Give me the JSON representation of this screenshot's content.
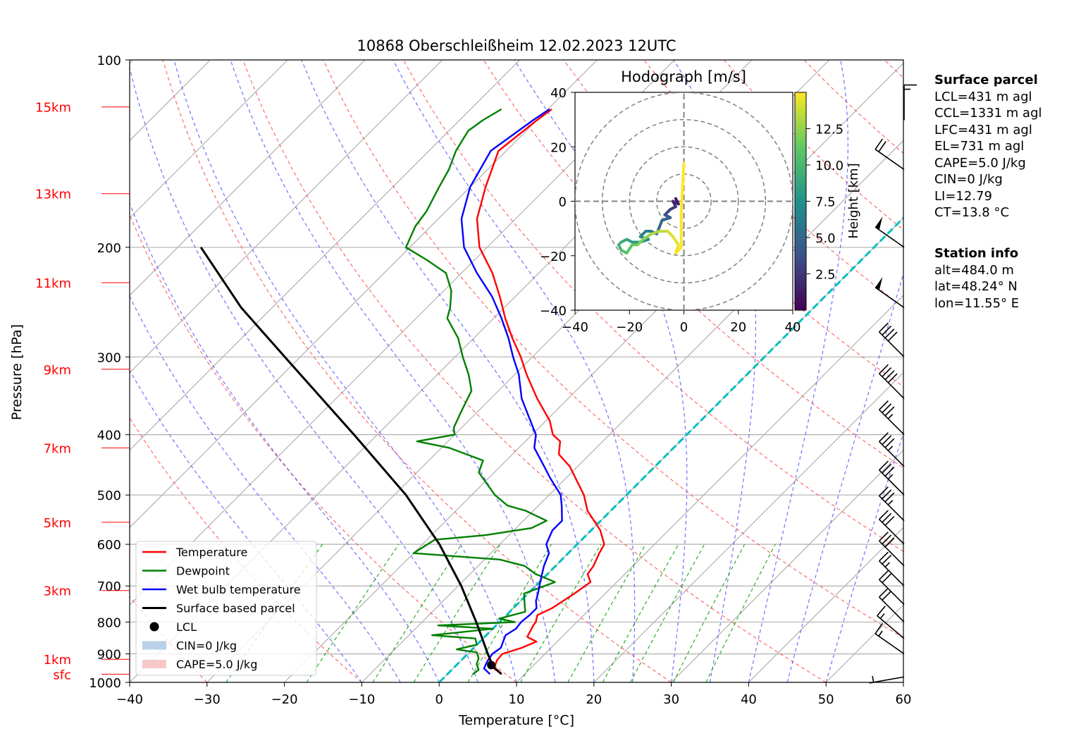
{
  "title": "10868 Oberschleißheim 12.02.2023 12UTC",
  "chart_data": {
    "type": "line",
    "title": "10868 Oberschleißheim 12.02.2023 12UTC",
    "xlabel": "Temperature [°C]",
    "ylabel": "Pressure [hPa]",
    "xlim": [
      -40,
      60
    ],
    "ylim": [
      1000,
      100
    ],
    "y_scale": "log",
    "x_ticks": [
      -40,
      -30,
      -20,
      -10,
      0,
      10,
      20,
      30,
      40,
      50,
      60
    ],
    "y_ticks": [
      100,
      200,
      300,
      400,
      500,
      600,
      700,
      800,
      900,
      1000
    ],
    "grid": true,
    "skew_note": "Skew-T log-p diagram",
    "height_labels": [
      {
        "label": "sfc",
        "p": 970
      },
      {
        "label": "1km",
        "p": 918
      },
      {
        "label": "3km",
        "p": 712
      },
      {
        "label": "5km",
        "p": 553
      },
      {
        "label": "7km",
        "p": 420
      },
      {
        "label": "9km",
        "p": 314
      },
      {
        "label": "11km",
        "p": 228
      },
      {
        "label": "13km",
        "p": 164
      },
      {
        "label": "15km",
        "p": 119
      }
    ],
    "legend": {
      "position": "lower-left",
      "entries": [
        {
          "label": "Temperature",
          "color": "#ff0000",
          "kind": "line"
        },
        {
          "label": "Dewpoint",
          "color": "#008000",
          "kind": "line"
        },
        {
          "label": "Wet bulb temperature",
          "color": "#0000ff",
          "kind": "line"
        },
        {
          "label": "Surface based parcel",
          "color": "#000000",
          "kind": "line"
        },
        {
          "label": "LCL",
          "color": "#000000",
          "kind": "dot"
        },
        {
          "label": "CIN=0 J/kg",
          "color": "#b8d1e6",
          "kind": "patch"
        },
        {
          "label": "CAPE=5.0 J/kg",
          "color": "#f6c8c8",
          "kind": "patch"
        }
      ]
    },
    "series": [
      {
        "name": "Temperature",
        "color": "#ff0000",
        "points": [
          [
            970,
            7.0
          ],
          [
            950,
            5.3
          ],
          [
            925,
            4.7
          ],
          [
            920,
            4.6
          ],
          [
            900,
            4.5
          ],
          [
            880,
            6.2
          ],
          [
            860,
            7.3
          ],
          [
            845,
            5.5
          ],
          [
            810,
            4.8
          ],
          [
            800,
            4.7
          ],
          [
            780,
            4.0
          ],
          [
            760,
            5.0
          ],
          [
            720,
            6.0
          ],
          [
            690,
            6.6
          ],
          [
            670,
            5.2
          ],
          [
            650,
            4.9
          ],
          [
            620,
            4.0
          ],
          [
            600,
            3.5
          ],
          [
            570,
            1.2
          ],
          [
            530,
            -3.0
          ],
          [
            500,
            -5.5
          ],
          [
            450,
            -11.0
          ],
          [
            430,
            -14.0
          ],
          [
            410,
            -15.5
          ],
          [
            400,
            -17.3
          ],
          [
            380,
            -19.5
          ],
          [
            350,
            -24.0
          ],
          [
            320,
            -28.5
          ],
          [
            300,
            -31.5
          ],
          [
            280,
            -35.0
          ],
          [
            260,
            -38.5
          ],
          [
            240,
            -42.0
          ],
          [
            220,
            -46.0
          ],
          [
            200,
            -51.0
          ],
          [
            180,
            -55.0
          ],
          [
            160,
            -58.0
          ],
          [
            140,
            -61.0
          ],
          [
            125,
            -60.0
          ],
          [
            120,
            -59.5
          ]
        ]
      },
      {
        "name": "Dewpoint",
        "color": "#008000",
        "points": [
          [
            970,
            3.3
          ],
          [
            955,
            3.5
          ],
          [
            935,
            2.5
          ],
          [
            915,
            2.0
          ],
          [
            895,
            1.0
          ],
          [
            885,
            -2.0
          ],
          [
            870,
            0.0
          ],
          [
            850,
            -1.0
          ],
          [
            840,
            -7.0
          ],
          [
            820,
            0.0
          ],
          [
            810,
            -7.5
          ],
          [
            800,
            2.0
          ],
          [
            790,
            -0.5
          ],
          [
            770,
            2.0
          ],
          [
            750,
            1.0
          ],
          [
            720,
            -0.5
          ],
          [
            690,
            2.0
          ],
          [
            670,
            -1.5
          ],
          [
            650,
            -4.0
          ],
          [
            635,
            -8.0
          ],
          [
            620,
            -20.0
          ],
          [
            590,
            -19.0
          ],
          [
            580,
            -13.0
          ],
          [
            565,
            -8.0
          ],
          [
            550,
            -7.0
          ],
          [
            530,
            -11.0
          ],
          [
            520,
            -14.0
          ],
          [
            500,
            -17.0
          ],
          [
            460,
            -22.0
          ],
          [
            440,
            -23.0
          ],
          [
            420,
            -29.0
          ],
          [
            410,
            -34.0
          ],
          [
            400,
            -30.0
          ],
          [
            390,
            -31.0
          ],
          [
            370,
            -32.0
          ],
          [
            340,
            -33.5
          ],
          [
            320,
            -36.0
          ],
          [
            300,
            -39.0
          ],
          [
            280,
            -42.0
          ],
          [
            260,
            -46.0
          ],
          [
            250,
            -47.0
          ],
          [
            235,
            -49.0
          ],
          [
            220,
            -52.0
          ],
          [
            210,
            -56.0
          ],
          [
            200,
            -60.5
          ],
          [
            185,
            -62.0
          ],
          [
            175,
            -62.5
          ],
          [
            160,
            -64.0
          ],
          [
            150,
            -65.0
          ],
          [
            140,
            -66.5
          ],
          [
            130,
            -67.5
          ],
          [
            125,
            -67.0
          ],
          [
            120,
            -66.0
          ]
        ]
      },
      {
        "name": "Wet bulb temperature",
        "color": "#0000ff",
        "points": [
          [
            970,
            5.5
          ],
          [
            950,
            4.0
          ],
          [
            925,
            3.5
          ],
          [
            900,
            3.2
          ],
          [
            880,
            3.5
          ],
          [
            860,
            3.0
          ],
          [
            840,
            2.5
          ],
          [
            820,
            3.0
          ],
          [
            800,
            2.8
          ],
          [
            780,
            3.0
          ],
          [
            760,
            3.0
          ],
          [
            740,
            2.0
          ],
          [
            720,
            1.3
          ],
          [
            700,
            0.5
          ],
          [
            680,
            -0.3
          ],
          [
            650,
            -1.5
          ],
          [
            620,
            -2.5
          ],
          [
            600,
            -4.0
          ],
          [
            570,
            -5.0
          ],
          [
            550,
            -5.0
          ],
          [
            520,
            -7.0
          ],
          [
            500,
            -8.5
          ],
          [
            470,
            -12.0
          ],
          [
            440,
            -15.5
          ],
          [
            420,
            -18.0
          ],
          [
            400,
            -19.5
          ],
          [
            380,
            -22.0
          ],
          [
            350,
            -26.0
          ],
          [
            320,
            -29.5
          ],
          [
            300,
            -32.5
          ],
          [
            280,
            -35.5
          ],
          [
            260,
            -39.0
          ],
          [
            240,
            -43.0
          ],
          [
            220,
            -48.0
          ],
          [
            200,
            -53.0
          ],
          [
            180,
            -57.0
          ],
          [
            160,
            -60.0
          ],
          [
            140,
            -62.0
          ],
          [
            125,
            -60.5
          ],
          [
            120,
            -59.8
          ]
        ]
      },
      {
        "name": "Surface based parcel",
        "color": "#000000",
        "points": [
          [
            970,
            7.0
          ],
          [
            940,
            4.7
          ],
          [
            920,
            3.7
          ],
          [
            900,
            2.6
          ],
          [
            850,
            -0.1
          ],
          [
            800,
            -3.0
          ],
          [
            700,
            -9.6
          ],
          [
            600,
            -17.8
          ],
          [
            500,
            -28.5
          ],
          [
            400,
            -43.0
          ],
          [
            300,
            -62.0
          ],
          [
            250,
            -74.0
          ],
          [
            200,
            -87.0
          ]
        ]
      }
    ],
    "lcl": {
      "p": 938,
      "t": 4.5
    },
    "freezing_line": {
      "color": "#00bfbf",
      "t": 0
    },
    "hodograph": {
      "title": "Hodograph [m/s]",
      "xlim": [
        -40,
        40
      ],
      "ylim": [
        -40,
        40
      ],
      "ticks": [
        -40,
        -20,
        0,
        20,
        40
      ],
      "rings": [
        10,
        20,
        30,
        40
      ],
      "colorbar_label": "Height [km]",
      "colorbar_ticks": [
        2.5,
        5.0,
        7.5,
        10.0,
        12.5
      ],
      "colorbar_max": 15,
      "points": [
        [
          -3,
          1,
          0.5
        ],
        [
          -2,
          -1,
          1.0
        ],
        [
          -4,
          0,
          1.5
        ],
        [
          -3,
          -2,
          2.0
        ],
        [
          -5,
          -3,
          2.5
        ],
        [
          -6,
          -4,
          3.0
        ],
        [
          -7,
          -5,
          3.5
        ],
        [
          -5,
          -6,
          4.0
        ],
        [
          -8,
          -7,
          4.5
        ],
        [
          -10,
          -12,
          5.0
        ],
        [
          -12,
          -11,
          5.5
        ],
        [
          -14,
          -11,
          6.0
        ],
        [
          -16,
          -13,
          6.5
        ],
        [
          -13,
          -14,
          7.0
        ],
        [
          -16,
          -15,
          7.5
        ],
        [
          -19,
          -15,
          8.0
        ],
        [
          -21,
          -14,
          8.5
        ],
        [
          -23,
          -15,
          9.0
        ],
        [
          -24,
          -16,
          9.5
        ],
        [
          -23,
          -18,
          10.0
        ],
        [
          -21,
          -19,
          10.5
        ],
        [
          -19,
          -16,
          11.0
        ],
        [
          -17,
          -16,
          11.5
        ],
        [
          -15,
          -14,
          12.0
        ],
        [
          -12,
          -12,
          12.5
        ],
        [
          -9,
          -11,
          13.0
        ],
        [
          -6,
          -11,
          13.5
        ],
        [
          -4,
          -13,
          14.0
        ],
        [
          -2,
          -16,
          14.3
        ],
        [
          -3,
          -19,
          14.6
        ],
        [
          -1,
          -17,
          14.8
        ],
        [
          -1,
          -5,
          15.0
        ],
        [
          0,
          14,
          15.0
        ]
      ]
    },
    "wind_barbs": [
      {
        "p": 980,
        "speed_kt": 5,
        "dir_deg": 280
      },
      {
        "p": 900,
        "speed_kt": 15,
        "dir_deg": 235
      },
      {
        "p": 850,
        "speed_kt": 15,
        "dir_deg": 230
      },
      {
        "p": 800,
        "speed_kt": 20,
        "dir_deg": 225
      },
      {
        "p": 750,
        "speed_kt": 20,
        "dir_deg": 225
      },
      {
        "p": 700,
        "speed_kt": 25,
        "dir_deg": 225
      },
      {
        "p": 650,
        "speed_kt": 30,
        "dir_deg": 225
      },
      {
        "p": 600,
        "speed_kt": 30,
        "dir_deg": 225
      },
      {
        "p": 550,
        "speed_kt": 35,
        "dir_deg": 225
      },
      {
        "p": 500,
        "speed_kt": 35,
        "dir_deg": 225
      },
      {
        "p": 450,
        "speed_kt": 35,
        "dir_deg": 225
      },
      {
        "p": 400,
        "speed_kt": 35,
        "dir_deg": 225
      },
      {
        "p": 350,
        "speed_kt": 40,
        "dir_deg": 225
      },
      {
        "p": 300,
        "speed_kt": 40,
        "dir_deg": 225
      },
      {
        "p": 250,
        "speed_kt": 50,
        "dir_deg": 235
      },
      {
        "p": 200,
        "speed_kt": 50,
        "dir_deg": 235
      },
      {
        "p": 150,
        "speed_kt": 20,
        "dir_deg": 235
      },
      {
        "p": 125,
        "speed_kt": 15,
        "dir_deg": 180
      }
    ]
  },
  "surface_parcel": {
    "header": "Surface parcel",
    "lines": [
      "LCL=431 m agl",
      "CCL=1331 m agl",
      "LFC=431 m agl",
      "EL=731 m agl",
      "CAPE=5.0 J/kg",
      "CIN=0 J/kg",
      "LI=12.79",
      "CT=13.8 °C"
    ]
  },
  "station_info": {
    "header": "Station info",
    "lines": [
      "alt=484.0 m",
      "lat=48.24° N",
      "lon=11.55° E"
    ]
  }
}
